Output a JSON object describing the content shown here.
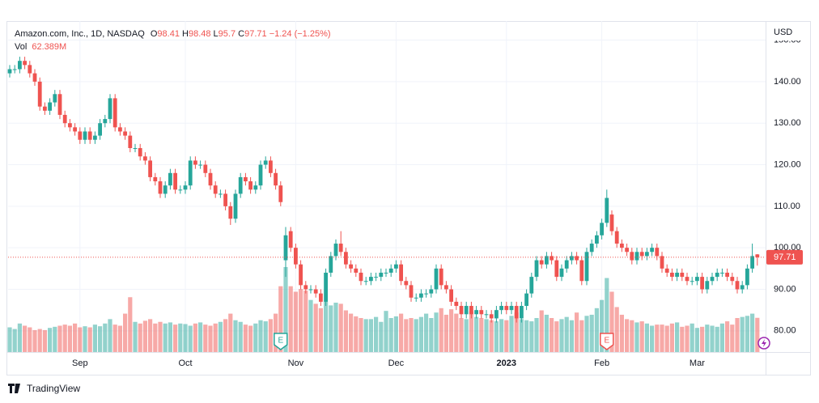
{
  "chart_data": {
    "type": "candlestick",
    "title": "Amazon.com, Inc., 1D, NASDAQ",
    "currency": "USD",
    "legend_letters": [
      "O",
      "H",
      "L",
      "C"
    ],
    "change": "−1.24 (−1.25%)",
    "events": [
      "E",
      "E"
    ],
    "brand": "TradingView",
    "up_color": "#26a69a",
    "down_color": "#ef5350",
    "grid": true,
    "ylim": [
      74.9,
      154.2
    ],
    "yticks": [
      {
        "value": 80,
        "label": "80.00"
      },
      {
        "value": 90,
        "label": "90.00"
      },
      {
        "value": 100,
        "label": "100.00"
      },
      {
        "value": 110,
        "label": "110.00"
      },
      {
        "value": 120,
        "label": "120.00"
      },
      {
        "value": 130,
        "label": "130.00"
      },
      {
        "value": 140,
        "label": "140.00"
      },
      {
        "value": 150,
        "label": "150.00"
      }
    ],
    "categories": [
      null,
      null,
      null,
      null,
      null,
      null,
      null,
      null,
      null,
      null,
      null,
      null,
      null,
      null,
      "Sep",
      null,
      null,
      null,
      null,
      null,
      null,
      null,
      null,
      null,
      null,
      null,
      null,
      null,
      null,
      null,
      null,
      null,
      null,
      null,
      null,
      "Oct",
      null,
      null,
      null,
      null,
      null,
      null,
      null,
      null,
      null,
      null,
      null,
      null,
      null,
      null,
      null,
      null,
      null,
      null,
      null,
      null,
      null,
      "Nov",
      null,
      null,
      null,
      null,
      null,
      null,
      null,
      null,
      null,
      null,
      null,
      null,
      null,
      null,
      null,
      null,
      null,
      null,
      null,
      "Dec",
      null,
      null,
      null,
      null,
      null,
      null,
      null,
      null,
      null,
      null,
      null,
      null,
      null,
      null,
      null,
      null,
      null,
      null,
      null,
      null,
      null,
      "2023",
      null,
      null,
      null,
      null,
      null,
      null,
      null,
      null,
      null,
      null,
      null,
      null,
      null,
      null,
      null,
      null,
      null,
      null,
      "Feb",
      null,
      null,
      null,
      null,
      null,
      null,
      null,
      null,
      null,
      null,
      null,
      null,
      null,
      null,
      null,
      null,
      null,
      null,
      "Mar",
      null,
      null,
      null,
      null,
      null,
      null,
      null,
      null,
      null,
      null,
      null,
      null
    ],
    "open": [
      142,
      143,
      143,
      145,
      144,
      142,
      140,
      134,
      133,
      135,
      137,
      132,
      130,
      129,
      128,
      126,
      128,
      126,
      127,
      130,
      131,
      136,
      129,
      128,
      127,
      124,
      124,
      122,
      121,
      117,
      116,
      113,
      115,
      118,
      114,
      114,
      115,
      121,
      120,
      120,
      118,
      115,
      113,
      113,
      110,
      107,
      113,
      117,
      116,
      114,
      115,
      120,
      121,
      118,
      115,
      97,
      104,
      100,
      96,
      91,
      90,
      90,
      89,
      87,
      94,
      98,
      101,
      99,
      96,
      95,
      94,
      92,
      92,
      93,
      93,
      94,
      94,
      95,
      96,
      92,
      91,
      88,
      88,
      89,
      89,
      90,
      95,
      91,
      90,
      87,
      86,
      84,
      86,
      84,
      85,
      84,
      84,
      83,
      85,
      86,
      85,
      86,
      83,
      86,
      89,
      93,
      97,
      96,
      98,
      97,
      93,
      95,
      97,
      98,
      97,
      92,
      99,
      101,
      103,
      106,
      108,
      104,
      101,
      100,
      99,
      97,
      99,
      98,
      99,
      100,
      98,
      95,
      94,
      93,
      94,
      93,
      92,
      92,
      93,
      90,
      92,
      93,
      94,
      94,
      93,
      92,
      90,
      91,
      95,
      98.41
    ],
    "high": [
      144,
      144,
      146,
      146,
      145,
      143,
      141,
      135,
      136,
      138,
      138,
      133,
      131,
      130,
      129,
      129,
      129,
      128,
      131,
      132,
      137,
      137,
      130,
      129,
      128,
      125,
      125,
      123,
      122,
      118,
      117,
      116,
      119,
      119,
      115,
      116,
      122,
      122,
      121,
      121,
      119,
      116,
      114,
      114,
      111,
      114,
      118,
      118,
      117,
      116,
      121,
      122,
      122,
      119,
      116,
      105,
      105,
      101,
      97,
      92,
      91,
      91,
      90,
      95,
      99,
      102,
      104,
      100,
      97,
      96,
      95,
      93,
      94,
      94,
      95,
      95,
      96,
      97,
      97,
      93,
      92,
      89,
      90,
      90,
      91,
      96,
      96,
      92,
      91,
      88,
      87,
      87,
      87,
      86,
      86,
      85,
      85,
      86,
      87,
      87,
      87,
      87,
      87,
      90,
      94,
      98,
      98,
      99,
      99,
      98,
      96,
      98,
      99,
      99,
      98,
      100,
      102,
      104,
      107,
      114,
      109,
      105,
      102,
      101,
      100,
      100,
      100,
      100,
      101,
      101,
      99,
      96,
      95,
      95,
      95,
      94,
      93,
      94,
      94,
      93,
      94,
      95,
      95,
      95,
      94,
      93,
      92,
      96,
      101,
      98.48
    ],
    "low": [
      141,
      142,
      142,
      143,
      141,
      139,
      133,
      132,
      132,
      134,
      131,
      129,
      128,
      127,
      125,
      125,
      125,
      125,
      126,
      129,
      130,
      128,
      127,
      126,
      123,
      123,
      121,
      120,
      116,
      115,
      112,
      112,
      114,
      113,
      113,
      113,
      114,
      119,
      119,
      117,
      114,
      112,
      112,
      109,
      105.5,
      106,
      112,
      115,
      113,
      113,
      114,
      119,
      117,
      114,
      110,
      93,
      99,
      95,
      90,
      89,
      89,
      88,
      86,
      86,
      93,
      97,
      98,
      95,
      94,
      93,
      91,
      91,
      91,
      92,
      92,
      93,
      93,
      94,
      91,
      90,
      87,
      87,
      87,
      88,
      88,
      89,
      90,
      89,
      86,
      85,
      83,
      83,
      83,
      83,
      83,
      83,
      82,
      82,
      84,
      84,
      84,
      82,
      82,
      85,
      88,
      92,
      95,
      95,
      96,
      92,
      92,
      94,
      96,
      96,
      91,
      91,
      98,
      100,
      102,
      105,
      103,
      100,
      99,
      98,
      96,
      96,
      97,
      97,
      98,
      97,
      94,
      93,
      92,
      92,
      92,
      91,
      91,
      91,
      89,
      89,
      91,
      92,
      93,
      92,
      91,
      89,
      89,
      90,
      94,
      95.7
    ],
    "close": [
      143,
      143,
      145,
      144,
      142,
      140,
      134,
      133,
      135,
      137,
      132,
      130,
      129,
      128,
      126,
      128,
      126,
      127,
      130,
      131,
      136,
      129,
      128,
      127,
      124,
      124,
      122,
      121,
      117,
      116,
      113,
      115,
      118,
      114,
      114,
      115,
      121,
      120,
      120,
      118,
      115,
      113,
      113,
      110,
      107,
      113,
      117,
      116,
      114,
      115,
      120,
      121,
      118,
      115,
      111,
      103,
      100,
      96,
      91,
      90,
      90,
      89,
      87,
      94,
      98,
      101,
      99,
      96,
      95,
      94,
      92,
      92,
      93,
      93,
      94,
      94,
      95,
      96,
      92,
      91,
      88,
      88,
      89,
      89,
      90,
      95,
      91,
      90,
      87,
      86,
      84,
      86,
      84,
      85,
      84,
      84,
      83,
      85,
      86,
      85,
      86,
      83,
      86,
      89,
      93,
      97,
      96,
      98,
      97,
      93,
      95,
      97,
      98,
      97,
      92,
      99,
      101,
      103,
      106,
      112,
      104,
      101,
      100,
      99,
      97,
      99,
      98,
      99,
      100,
      98,
      95,
      94,
      93,
      94,
      93,
      92,
      92,
      93,
      90,
      92,
      93,
      94,
      94,
      93,
      92,
      90,
      91,
      95,
      98,
      97.71
    ],
    "volume": {
      "name": "Vol",
      "label": "62.389M",
      "values": [
        45,
        42,
        52,
        48,
        45,
        40,
        42,
        40,
        44,
        46,
        48,
        50,
        48,
        52,
        45,
        47,
        45,
        50,
        47,
        52,
        60,
        50,
        48,
        70,
        100,
        55,
        52,
        57,
        60,
        52,
        55,
        52,
        54,
        50,
        52,
        51,
        48,
        52,
        54,
        50,
        48,
        52,
        55,
        60,
        70,
        58,
        55,
        50,
        48,
        52,
        58,
        56,
        60,
        70,
        120,
        155,
        120,
        110,
        115,
        112,
        95,
        88,
        80,
        92,
        85,
        90,
        88,
        76,
        70,
        65,
        62,
        60,
        60,
        64,
        55,
        75,
        62,
        65,
        70,
        60,
        62,
        60,
        64,
        70,
        62,
        72,
        80,
        68,
        78,
        70,
        62,
        60,
        74,
        64,
        62,
        60,
        58,
        56,
        60,
        58,
        66,
        72,
        60,
        58,
        56,
        62,
        76,
        68,
        62,
        56,
        60,
        64,
        58,
        72,
        58,
        66,
        68,
        80,
        95,
        135,
        110,
        82,
        68,
        60,
        58,
        54,
        56,
        52,
        48,
        50,
        50,
        48,
        52,
        54,
        46,
        48,
        52,
        44,
        46,
        50,
        48,
        46,
        52,
        56,
        50,
        62,
        64,
        66,
        70,
        62.389
      ]
    }
  }
}
